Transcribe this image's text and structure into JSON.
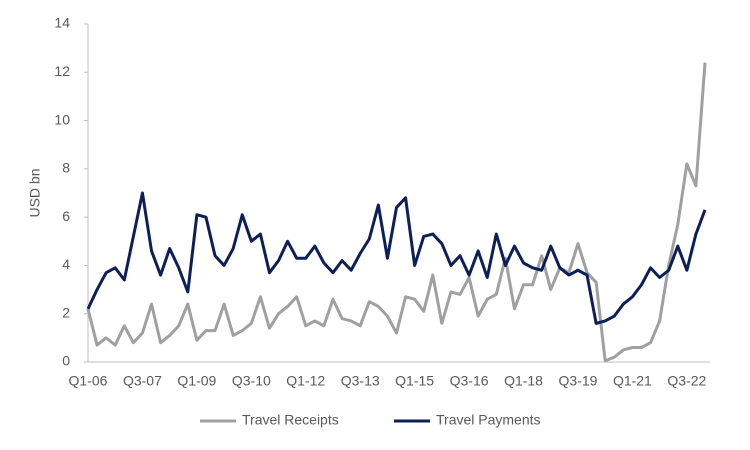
{
  "chart_data": {
    "type": "line",
    "ylabel": "USD bn",
    "categories": [
      "Q1-06",
      null,
      null,
      null,
      null,
      null,
      "Q3-07",
      null,
      null,
      null,
      null,
      null,
      "Q1-09",
      null,
      null,
      null,
      null,
      null,
      "Q3-10",
      null,
      null,
      null,
      null,
      null,
      "Q1-12",
      null,
      null,
      null,
      null,
      null,
      "Q3-13",
      null,
      null,
      null,
      null,
      null,
      "Q1-15",
      null,
      null,
      null,
      null,
      null,
      "Q3-16",
      null,
      null,
      null,
      null,
      null,
      "Q1-18",
      null,
      null,
      null,
      null,
      null,
      "Q3-19",
      null,
      null,
      null,
      null,
      null,
      "Q1-21",
      null,
      null,
      null,
      null,
      null,
      "Q3-22",
      null,
      null
    ],
    "series": [
      {
        "name": "Travel Receipts",
        "color": "#a0a0a0",
        "values": [
          2.2,
          0.7,
          1.0,
          0.7,
          1.5,
          0.8,
          1.2,
          2.4,
          0.8,
          1.1,
          1.5,
          2.4,
          0.9,
          1.3,
          1.3,
          2.4,
          1.1,
          1.3,
          1.6,
          2.7,
          1.4,
          2.0,
          2.3,
          2.7,
          1.5,
          1.7,
          1.5,
          2.6,
          1.8,
          1.7,
          1.5,
          2.5,
          2.3,
          1.9,
          1.2,
          2.7,
          2.6,
          2.1,
          3.6,
          1.6,
          2.9,
          2.8,
          3.5,
          1.9,
          2.6,
          2.8,
          4.3,
          2.2,
          3.2,
          3.2,
          4.4,
          3.0,
          3.9,
          3.7,
          4.9,
          3.7,
          3.3,
          0.05,
          0.2,
          0.5,
          0.6,
          0.6,
          0.8,
          1.7,
          4.0,
          5.7,
          8.2,
          7.3,
          12.4
        ]
      },
      {
        "name": "Travel Payments",
        "color": "#0c1f5a",
        "values": [
          2.2,
          3.0,
          3.7,
          3.9,
          3.4,
          5.2,
          7.0,
          4.6,
          3.6,
          4.7,
          3.9,
          2.9,
          6.1,
          6.0,
          4.4,
          4.0,
          4.7,
          6.1,
          5.0,
          5.3,
          3.7,
          4.2,
          5.0,
          4.3,
          4.3,
          4.8,
          4.1,
          3.7,
          4.2,
          3.8,
          4.5,
          5.1,
          6.5,
          4.3,
          6.4,
          6.8,
          4.0,
          5.2,
          5.3,
          4.9,
          4.0,
          4.4,
          3.6,
          4.6,
          3.5,
          5.3,
          4.0,
          4.8,
          4.1,
          3.9,
          3.8,
          4.8,
          3.9,
          3.6,
          3.8,
          3.6,
          1.6,
          1.7,
          1.9,
          2.4,
          2.7,
          3.2,
          3.9,
          3.5,
          3.8,
          4.8,
          3.8,
          5.3,
          6.3
        ]
      }
    ],
    "ylim": [
      0,
      14
    ],
    "yticks": [
      0,
      2,
      4,
      6,
      8,
      10,
      12,
      14
    ],
    "grid": false,
    "legend": "bottom"
  }
}
